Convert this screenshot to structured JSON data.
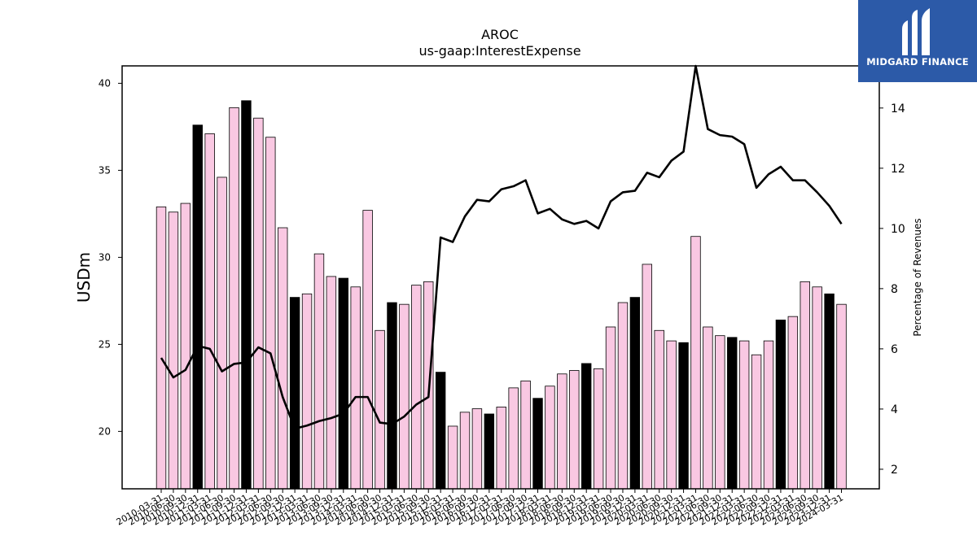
{
  "logo": {
    "text": "MIDGARD FINANCE"
  },
  "colors": {
    "quarter_bar": "#f9c8e2",
    "year_end_bar": "#000000",
    "line": "#000000"
  },
  "chart_data": {
    "type": "bar",
    "title": "AROC",
    "subtitle": "us-gaap:InterestExpense",
    "ylabel": "USDm",
    "y2label": "Percentage of Revenues",
    "ylim": [
      16.7,
      41.0
    ],
    "y2lim": [
      1.35,
      15.4
    ],
    "yticks": [
      20,
      25,
      30,
      35,
      40
    ],
    "y2ticks": [
      2,
      4,
      6,
      8,
      10,
      12,
      14
    ],
    "grid": false,
    "categories": [
      "2010-03-31",
      "2010-06-30",
      "2010-09-30",
      "2010-12-31",
      "2011-03-31",
      "2011-06-30",
      "2011-09-30",
      "2011-12-31",
      "2012-03-31",
      "2012-06-30",
      "2012-09-30",
      "2012-12-31",
      "2013-03-31",
      "2013-06-30",
      "2013-09-30",
      "2013-12-31",
      "2014-03-31",
      "2014-06-30",
      "2014-09-30",
      "2014-12-31",
      "2015-03-31",
      "2015-06-30",
      "2015-09-30",
      "2015-12-31",
      "2016-03-31",
      "2016-06-30",
      "2016-09-30",
      "2016-12-31",
      "2017-03-31",
      "2017-06-30",
      "2017-09-30",
      "2017-12-31",
      "2018-03-31",
      "2018-06-30",
      "2018-09-30",
      "2018-12-31",
      "2019-03-31",
      "2019-06-30",
      "2019-09-30",
      "2019-12-31",
      "2020-03-31",
      "2020-06-30",
      "2020-09-30",
      "2020-12-31",
      "2021-03-31",
      "2021-06-30",
      "2021-09-30",
      "2021-12-31",
      "2022-03-31",
      "2022-06-30",
      "2022-09-30",
      "2022-12-31",
      "2023-03-31",
      "2023-06-30",
      "2023-09-30",
      "2023-12-31",
      "2024-03-31"
    ],
    "series": [
      {
        "type": "bar",
        "values": [
          32.9,
          32.6,
          33.1,
          37.6,
          37.1,
          34.6,
          38.6,
          39.0,
          38.0,
          36.9,
          31.7,
          27.7,
          27.9,
          30.2,
          28.9,
          28.8,
          28.3,
          32.7,
          25.8,
          27.4,
          27.3,
          28.4,
          28.6,
          23.4,
          20.3,
          21.1,
          21.3,
          21.0,
          21.4,
          22.5,
          22.9,
          21.9,
          22.6,
          23.3,
          23.5,
          23.9,
          23.6,
          26.0,
          27.4,
          27.7,
          29.6,
          25.8,
          25.2,
          25.1,
          31.2,
          26.0,
          25.5,
          25.4,
          25.2,
          24.4,
          25.2,
          26.4,
          26.6,
          28.6,
          28.3,
          27.9,
          27.3
        ],
        "year_end": [
          false,
          false,
          false,
          true,
          false,
          false,
          false,
          true,
          false,
          false,
          false,
          true,
          false,
          false,
          false,
          true,
          false,
          false,
          false,
          true,
          false,
          false,
          false,
          true,
          false,
          false,
          false,
          true,
          false,
          false,
          false,
          true,
          false,
          false,
          false,
          true,
          false,
          false,
          false,
          true,
          false,
          false,
          false,
          true,
          false,
          false,
          false,
          true,
          false,
          false,
          false,
          true,
          false,
          false,
          false,
          true,
          false
        ]
      },
      {
        "type": "line",
        "axis": "right",
        "values": [
          5.7,
          5.05,
          5.3,
          6.1,
          6.0,
          5.25,
          5.5,
          5.55,
          6.05,
          5.85,
          4.4,
          3.35,
          3.45,
          3.6,
          3.7,
          3.85,
          4.4,
          4.4,
          3.55,
          3.5,
          3.75,
          4.15,
          4.4,
          9.7,
          9.55,
          10.4,
          10.95,
          10.9,
          11.3,
          11.4,
          11.6,
          10.5,
          10.65,
          10.3,
          10.15,
          10.25,
          10.0,
          10.9,
          11.2,
          11.25,
          11.85,
          11.7,
          12.25,
          12.55,
          15.4,
          13.3,
          13.1,
          13.05,
          12.8,
          11.35,
          11.8,
          12.05,
          11.6,
          11.6,
          11.2,
          10.75,
          10.15
        ]
      }
    ]
  }
}
